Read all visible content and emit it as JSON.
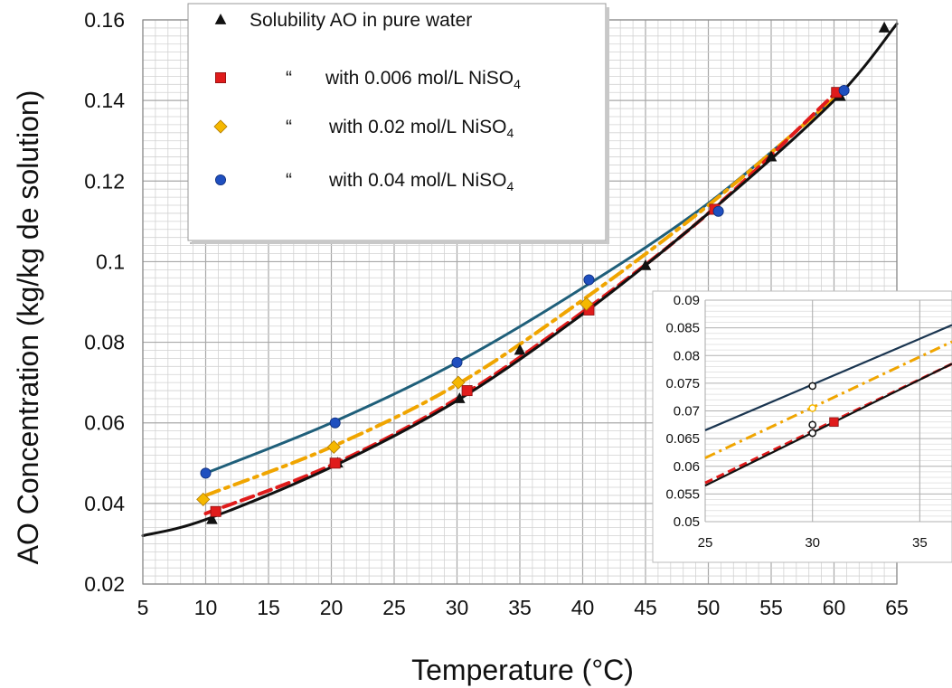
{
  "chart_data": [
    {
      "type": "scatter",
      "title": "",
      "xlabel": "Temperature (°C)",
      "ylabel": "AO  Concentration  (kg/kg de solution)",
      "xlim": [
        5,
        65
      ],
      "ylim": [
        0.02,
        0.16
      ],
      "xticks": [
        "5",
        "10",
        "15",
        "20",
        "25",
        "30",
        "35",
        "40",
        "45",
        "50",
        "55",
        "60",
        "65"
      ],
      "yticks": [
        "0.02",
        "0.04",
        "0.06",
        "0.08",
        "0.1",
        "0.12",
        "0.14",
        "0.16"
      ],
      "grid": true,
      "legend_position": "top-left",
      "legend": [
        {
          "label": "Solubility AO  in pure water",
          "quote": "",
          "marker": "triangle"
        },
        {
          "label": "with  0.006 mol/L NiSO",
          "sub": "4",
          "quote": "“",
          "marker": "square"
        },
        {
          "label": "with  0.02 mol/L  NiSO",
          "sub": "4",
          "quote": "“",
          "marker": "diamond"
        },
        {
          "label": "with  0.04 mol/L  NiSO",
          "sub": "4",
          "quote": "“",
          "marker": "circle"
        }
      ],
      "series": [
        {
          "key": "pure",
          "marker": "triangle",
          "color": "#111111",
          "points": [
            [
              10.5,
              0.036
            ],
            [
              20.5,
              0.05
            ],
            [
              30.2,
              0.066
            ],
            [
              35,
              0.078
            ],
            [
              45,
              0.099
            ],
            [
              55,
              0.126
            ],
            [
              60.5,
              0.141
            ],
            [
              64,
              0.158
            ]
          ]
        },
        {
          "key": "s006",
          "marker": "square",
          "color": "#e01b1b",
          "points": [
            [
              10.8,
              0.038
            ],
            [
              20.3,
              0.05
            ],
            [
              30.8,
              0.068
            ],
            [
              40.5,
              0.088
            ],
            [
              50.5,
              0.113
            ],
            [
              60.2,
              0.142
            ]
          ]
        },
        {
          "key": "s02",
          "marker": "diamond",
          "color": "#f5b800",
          "points": [
            [
              9.8,
              0.041
            ],
            [
              20.2,
              0.054
            ],
            [
              30.1,
              0.07
            ],
            [
              40.3,
              0.0895
            ]
          ]
        },
        {
          "key": "s04",
          "marker": "circle",
          "color": "#1f4fbf",
          "points": [
            [
              10,
              0.0475
            ],
            [
              20.3,
              0.06
            ],
            [
              30,
              0.075
            ],
            [
              40.5,
              0.0955
            ],
            [
              50.8,
              0.1125
            ],
            [
              60.8,
              0.1425
            ]
          ]
        }
      ],
      "fit_curves": [
        {
          "key": "pure",
          "color": "#111111",
          "style": "solid",
          "x_range": [
            5,
            65
          ],
          "points": [
            [
              5,
              0.032
            ],
            [
              10,
              0.036
            ],
            [
              20,
              0.049
            ],
            [
              30,
              0.0655
            ],
            [
              40,
              0.087
            ],
            [
              50,
              0.112
            ],
            [
              60,
              0.14
            ],
            [
              65,
              0.159
            ]
          ]
        },
        {
          "key": "s006",
          "color": "#e01b1b",
          "style": "dashed",
          "x_range": [
            10,
            60
          ],
          "points": [
            [
              10,
              0.0375
            ],
            [
              20,
              0.0495
            ],
            [
              30,
              0.066
            ],
            [
              40,
              0.0875
            ],
            [
              50,
              0.112
            ],
            [
              60,
              0.1415
            ]
          ]
        },
        {
          "key": "s02",
          "color": "#f0a500",
          "style": "dashdot",
          "x_range": [
            10,
            60
          ],
          "points": [
            [
              10,
              0.042
            ],
            [
              20,
              0.054
            ],
            [
              30,
              0.0695
            ],
            [
              40,
              0.0905
            ],
            [
              50,
              0.114
            ],
            [
              60,
              0.1405
            ]
          ]
        },
        {
          "key": "s04",
          "color": "#1f5f7a",
          "style": "solid",
          "x_range": [
            10,
            60
          ],
          "points": [
            [
              10,
              0.0475
            ],
            [
              20,
              0.06
            ],
            [
              30,
              0.075
            ],
            [
              40,
              0.0935
            ],
            [
              50,
              0.1145
            ],
            [
              60,
              0.1405
            ]
          ]
        }
      ]
    },
    {
      "type": "line",
      "title": "",
      "xlim": [
        25,
        36.5
      ],
      "ylim": [
        0.05,
        0.09
      ],
      "xticks": [
        "25",
        "30",
        "35"
      ],
      "yticks": [
        "0.05",
        "0.055",
        "0.06",
        "0.065",
        "0.07",
        "0.075",
        "0.08",
        "0.085",
        "0.09"
      ],
      "grid": true,
      "position": "bottom-right inset",
      "lines": [
        {
          "key": "s04",
          "color": "#1a3550",
          "style": "solid",
          "points": [
            [
              25,
              0.0665
            ],
            [
              36.5,
              0.0855
            ]
          ]
        },
        {
          "key": "s02",
          "color": "#f0a500",
          "style": "dashdot",
          "points": [
            [
              25,
              0.0615
            ],
            [
              36.5,
              0.0825
            ]
          ]
        },
        {
          "key": "s006",
          "color": "#e01b1b",
          "style": "dashed",
          "points": [
            [
              25,
              0.057
            ],
            [
              36.5,
              0.0785
            ]
          ]
        },
        {
          "key": "pure",
          "color": "#111111",
          "style": "solid",
          "points": [
            [
              25,
              0.0565
            ],
            [
              36.5,
              0.0785
            ]
          ]
        }
      ],
      "markers": [
        {
          "shape": "circle-open",
          "color": "#111111",
          "x": 30,
          "y": 0.0745
        },
        {
          "shape": "circle-open",
          "color": "#f5b800",
          "x": 30,
          "y": 0.0705
        },
        {
          "shape": "circle-open",
          "color": "#111111",
          "x": 30,
          "y": 0.0675
        },
        {
          "shape": "circle-open",
          "color": "#111111",
          "x": 30,
          "y": 0.066
        },
        {
          "shape": "square",
          "color": "#e01b1b",
          "x": 31,
          "y": 0.068
        }
      ]
    }
  ]
}
